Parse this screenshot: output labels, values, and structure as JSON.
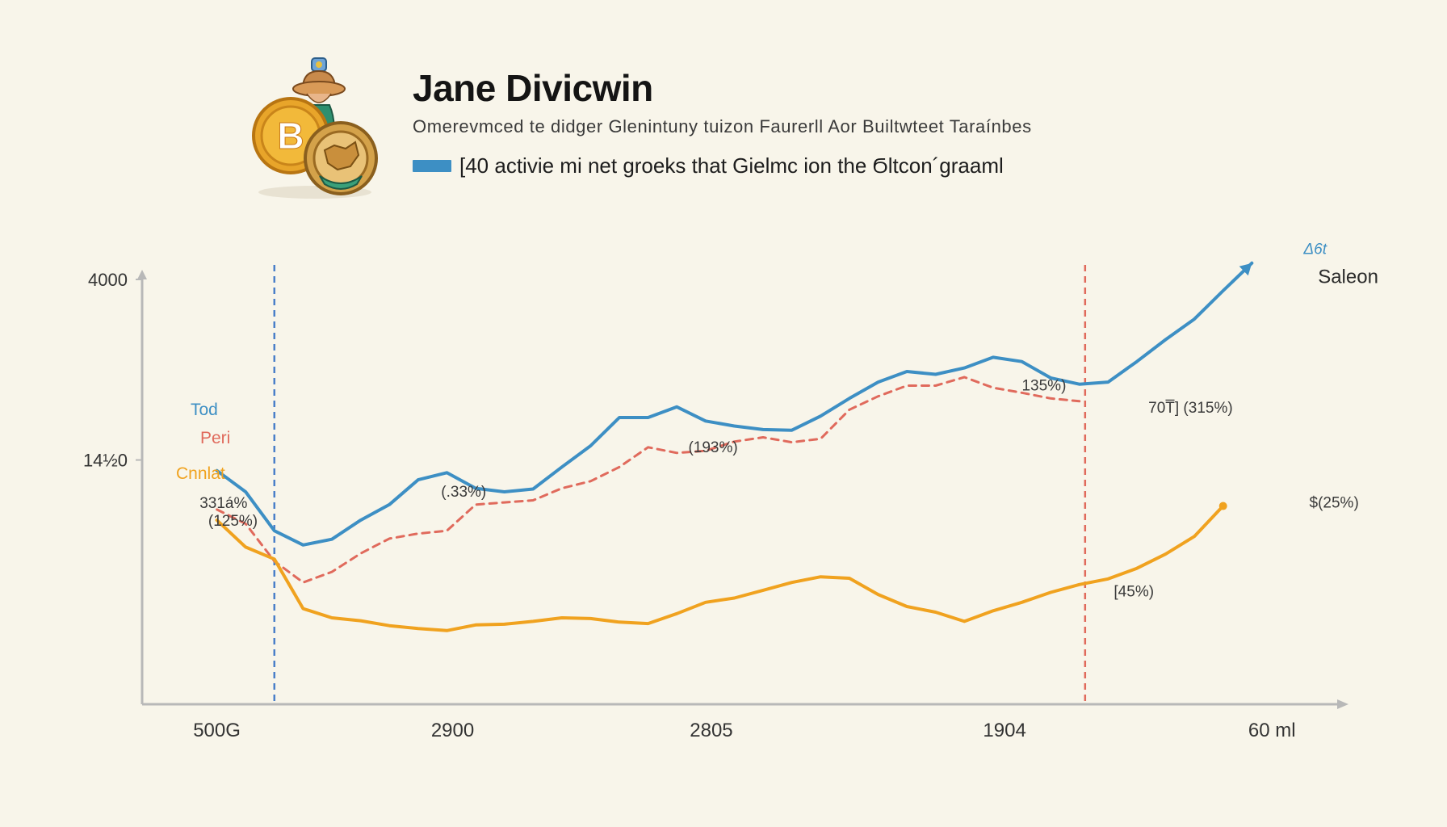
{
  "header": {
    "title": "Jane Divicwin",
    "subtitle": "Omerevmced te didger Glenintuny tuizon Faurerll Aor Builtwteet Taraínbes",
    "legend_text": "[40 activie mi net groeks that Gielmc ion the Ϭltcon´graaml"
  },
  "colors": {
    "background": "#f8f5ea",
    "blue": "#3d8fc4",
    "red": "#e06a5c",
    "orange": "#f0a21f",
    "axis": "#b8b8b8"
  },
  "icons": {
    "logo": "bitcoin-coins-figurine-icon"
  },
  "chart_data": {
    "type": "line",
    "grid": false,
    "title": "",
    "xlabel": "",
    "ylabel": "",
    "x": [
      0,
      1,
      2,
      3,
      4,
      5,
      6,
      7,
      8,
      9,
      10,
      11,
      12,
      13,
      14,
      15,
      16,
      17,
      18,
      19,
      20,
      21,
      22,
      23,
      24,
      25,
      26,
      27,
      28,
      29,
      30,
      31,
      32,
      33,
      34,
      35,
      36,
      37,
      38,
      39,
      40
    ],
    "x_ticks": [
      {
        "x": 0,
        "label": "500G"
      },
      {
        "x": 8.2,
        "label": "2900"
      },
      {
        "x": 17.2,
        "label": "2805"
      },
      {
        "x": 27.4,
        "label": "1904"
      },
      {
        "x": 36.7,
        "label": "60 ml"
      }
    ],
    "x_range": [
      -2.6,
      38.8
    ],
    "y_ticks": [
      {
        "y": 1450,
        "label": "14½0"
      },
      {
        "y": 4000,
        "label": "4000"
      }
    ],
    "y_range": [
      -2000,
      4000
    ],
    "vertical_lines": [
      {
        "x": 2,
        "color": "#4a7fc9"
      },
      {
        "x": 30.2,
        "color": "#e06a5c"
      }
    ],
    "series": [
      {
        "name": "Tod",
        "color": "#3d8fc4",
        "style": "solid",
        "end_arrow": true,
        "values": [
          1300,
          1000,
          450,
          250,
          330,
          600,
          820,
          1170,
          1270,
          1050,
          1000,
          1040,
          1350,
          1650,
          2050,
          2050,
          2200,
          2000,
          1930,
          1880,
          1870,
          2070,
          2320,
          2550,
          2700,
          2660,
          2750,
          2900,
          2840,
          2610,
          2520,
          2550,
          2840,
          3150,
          3440,
          3840,
          4230,
          null,
          null,
          null,
          null
        ]
      },
      {
        "name": "Peri",
        "color": "#e06a5c",
        "style": "dashed",
        "values": [
          750,
          550,
          20,
          -280,
          -130,
          130,
          340,
          410,
          450,
          820,
          850,
          880,
          1050,
          1150,
          1350,
          1630,
          1550,
          1580,
          1710,
          1770,
          1700,
          1750,
          2160,
          2350,
          2500,
          2500,
          2620,
          2470,
          2400,
          2320,
          2280,
          null,
          null,
          null,
          null,
          null,
          null,
          null,
          null,
          null,
          null
        ]
      },
      {
        "name": "Cnnlat",
        "color": "#f0a21f",
        "style": "solid",
        "values": [
          600,
          220,
          50,
          -650,
          -780,
          -820,
          -890,
          -930,
          -960,
          -880,
          -870,
          -830,
          -780,
          -790,
          -840,
          -860,
          -720,
          -560,
          -500,
          -390,
          -280,
          -200,
          -220,
          -450,
          -620,
          -700,
          -830,
          -680,
          -560,
          -420,
          -310,
          -230,
          -80,
          120,
          370,
          800,
          null,
          null,
          null,
          null,
          null
        ]
      }
    ],
    "annotations": [
      {
        "text": "(125%)",
        "x": -0.3,
        "y": 520,
        "color": "#3a3a3a"
      },
      {
        "text": "331á%",
        "x": -0.6,
        "y": 770,
        "color": "#3a3a3a"
      },
      {
        "text": "(.33%)",
        "x": 7.8,
        "y": 930,
        "color": "#3a3a3a"
      },
      {
        "text": "(193%)",
        "x": 16.4,
        "y": 1560,
        "color": "#3a3a3a"
      },
      {
        "text": "135%)",
        "x": 28.0,
        "y": 2430,
        "color": "#3a3a3a"
      },
      {
        "text": "70T̅] (315%)",
        "x": 32.4,
        "y": 2120,
        "color": "#3a3a3a"
      },
      {
        "text": "[45%)",
        "x": 31.2,
        "y": -480,
        "color": "#3a3a3a"
      },
      {
        "text": "$(25%)",
        "x": 38.0,
        "y": 780,
        "color": "#3a3a3a"
      },
      {
        "text": "Δ6t",
        "x": 37.8,
        "y": 4360,
        "color": "#3d8fc4",
        "style": "italic"
      },
      {
        "text": "Saleon",
        "x": 38.3,
        "y": 3950,
        "color": "#2a2a2a",
        "size": 24
      }
    ]
  }
}
